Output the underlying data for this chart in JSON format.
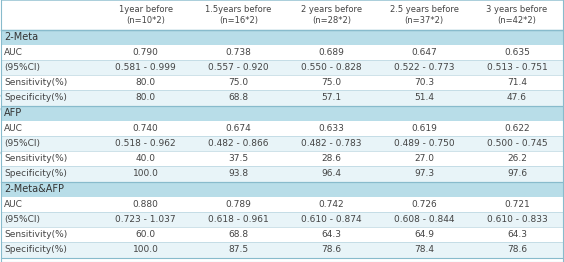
{
  "col_headers": [
    "1year before\n(n=10*2)",
    "1.5years before\n(n=16*2)",
    "2 years before\n(n=28*2)",
    "2.5 years before\n(n=37*2)",
    "3 years before\n(n=42*2)"
  ],
  "row_groups": [
    {
      "group_label": "2-Meta",
      "rows": [
        {
          "label": "AUC",
          "values": [
            "0.790",
            "0.738",
            "0.689",
            "0.647",
            "0.635"
          ]
        },
        {
          "label": "(95%CI)",
          "values": [
            "0.581 - 0.999",
            "0.557 - 0.920",
            "0.550 - 0.828",
            "0.522 - 0.773",
            "0.513 - 0.751"
          ]
        },
        {
          "label": "Sensitivity(%)",
          "values": [
            "80.0",
            "75.0",
            "75.0",
            "70.3",
            "71.4"
          ]
        },
        {
          "label": "Specificity(%)",
          "values": [
            "80.0",
            "68.8",
            "57.1",
            "51.4",
            "47.6"
          ]
        }
      ]
    },
    {
      "group_label": "AFP",
      "rows": [
        {
          "label": "AUC",
          "values": [
            "0.740",
            "0.674",
            "0.633",
            "0.619",
            "0.622"
          ]
        },
        {
          "label": "(95%CI)",
          "values": [
            "0.518 - 0.962",
            "0.482 - 0.866",
            "0.482 - 0.783",
            "0.489 - 0.750",
            "0.500 - 0.745"
          ]
        },
        {
          "label": "Sensitivity(%)",
          "values": [
            "40.0",
            "37.5",
            "28.6",
            "27.0",
            "26.2"
          ]
        },
        {
          "label": "Specificity(%)",
          "values": [
            "100.0",
            "93.8",
            "96.4",
            "97.3",
            "97.6"
          ]
        }
      ]
    },
    {
      "group_label": "2-Meta&AFP",
      "rows": [
        {
          "label": "AUC",
          "values": [
            "0.880",
            "0.789",
            "0.742",
            "0.726",
            "0.721"
          ]
        },
        {
          "label": "(95%CI)",
          "values": [
            "0.723 - 1.037",
            "0.618 - 0.961",
            "0.610 - 0.874",
            "0.608 - 0.844",
            "0.610 - 0.833"
          ]
        },
        {
          "label": "Sensitivity(%)",
          "values": [
            "60.0",
            "68.8",
            "64.3",
            "64.9",
            "64.3"
          ]
        },
        {
          "label": "Specificity(%)",
          "values": [
            "100.0",
            "87.5",
            "78.6",
            "78.4",
            "78.6"
          ]
        }
      ]
    }
  ],
  "group_bg": "#b8dde8",
  "row_bg_white": "#ffffff",
  "row_bg_light": "#e8f4f8",
  "label_bg_tint": "#ddeef4",
  "text_color": "#444444",
  "header_text_color": "#444444",
  "group_text_color": "#333333",
  "line_color": "#aaccd8",
  "border_color": "#88bbcc",
  "figsize": [
    5.64,
    2.62
  ],
  "dpi": 100
}
